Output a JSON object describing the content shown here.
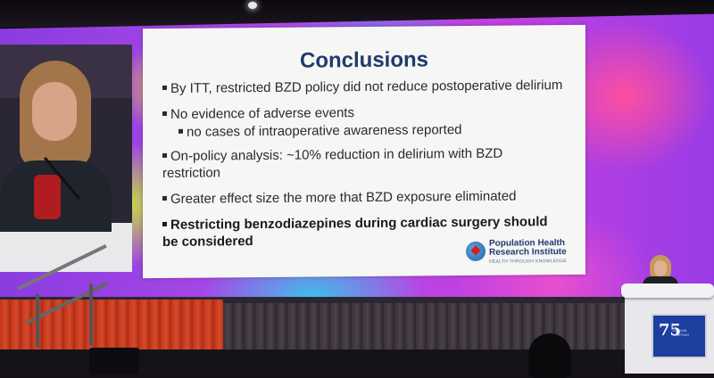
{
  "slide": {
    "title": "Conclusions",
    "bullets": [
      {
        "text": "By ITT, restricted BZD policy did not reduce postoperative delirium"
      },
      {
        "text": "No evidence of adverse events",
        "sub": "no cases of intraoperative awareness reported"
      },
      {
        "text": "On-policy analysis: ~10% reduction in delirium with BZD restriction"
      },
      {
        "text": "Greater effect size the more that BZD exposure eliminated"
      }
    ],
    "bold_bullet": "Restricting benzodiazepines during cardiac surgery should be considered",
    "logo": {
      "line1": "Population Health",
      "line2": "Research Institute",
      "tagline": "HEALTH THROUGH KNOWLEDGE"
    }
  },
  "podium": {
    "logo_number": "75",
    "logo_text": "ANNUAL MEETING"
  },
  "colors": {
    "title": "#1f3a70",
    "backdrop": "#b04ae8",
    "podium_screen": "#1c3fa0"
  }
}
